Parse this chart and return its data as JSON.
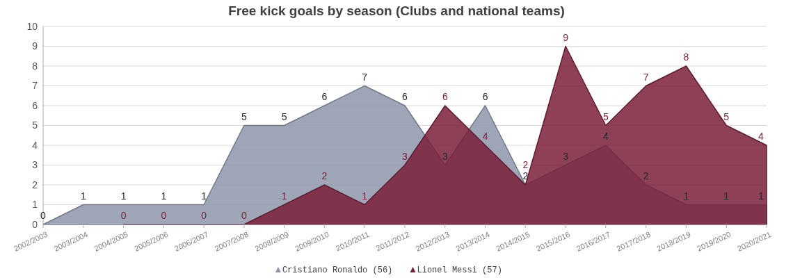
{
  "chart_data": {
    "type": "area",
    "title": "Free kick goals by season (Clubs and national teams)",
    "categories": [
      "2002/2003",
      "2003/2004",
      "2004/2005",
      "2005/2006",
      "2006/2007",
      "2007/2008",
      "2008/2009",
      "2009/2010",
      "2010/2011",
      "2011/2012",
      "2012/2013",
      "2013/2014",
      "2014/2015",
      "2015/2016",
      "2016/2017",
      "2017/2018",
      "2018/2019",
      "2019/2020",
      "2020/2021"
    ],
    "series": [
      {
        "name": "Cristiano Ronaldo (56)",
        "color": "#8e96ab",
        "values": [
          0,
          1,
          1,
          1,
          1,
          5,
          5,
          6,
          7,
          6,
          3,
          6,
          2,
          3,
          4,
          2,
          1,
          1,
          1
        ]
      },
      {
        "name": "Lionel Messi (57)",
        "color": "#7a2038",
        "values": [
          null,
          null,
          0,
          0,
          0,
          0,
          1,
          2,
          1,
          3,
          6,
          4,
          2,
          9,
          5,
          7,
          8,
          5,
          4
        ]
      }
    ],
    "ylim": [
      0,
      10
    ],
    "yticks": [
      0,
      1,
      2,
      3,
      4,
      5,
      6,
      7,
      8,
      9,
      10
    ],
    "grid": "y",
    "legend": "bottom",
    "data_labels": true
  }
}
